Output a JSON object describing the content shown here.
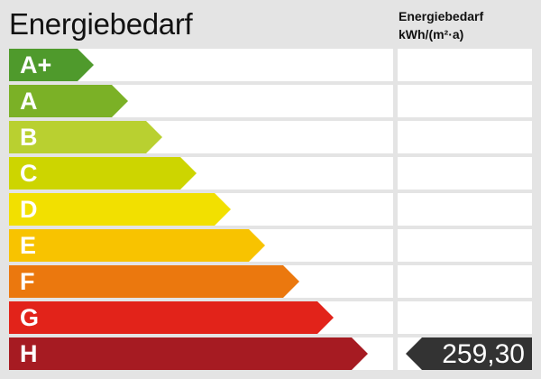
{
  "header": {
    "title": "Energiebedarf",
    "column_title_line1": "Energiebedarf",
    "column_title_line2": "kWh/(m²·a)"
  },
  "classes": [
    {
      "label": "A+",
      "color": "#4f9a2c"
    },
    {
      "label": "A",
      "color": "#7bb126"
    },
    {
      "label": "B",
      "color": "#b9d030"
    },
    {
      "label": "C",
      "color": "#cdd500"
    },
    {
      "label": "D",
      "color": "#f2e000"
    },
    {
      "label": "E",
      "color": "#f8c300"
    },
    {
      "label": "F",
      "color": "#eb780e"
    },
    {
      "label": "G",
      "color": "#e2231a"
    },
    {
      "label": "H",
      "color": "#a61b22"
    }
  ],
  "result": {
    "class": "H",
    "value": "259,30",
    "marker_color": "#333333"
  }
}
